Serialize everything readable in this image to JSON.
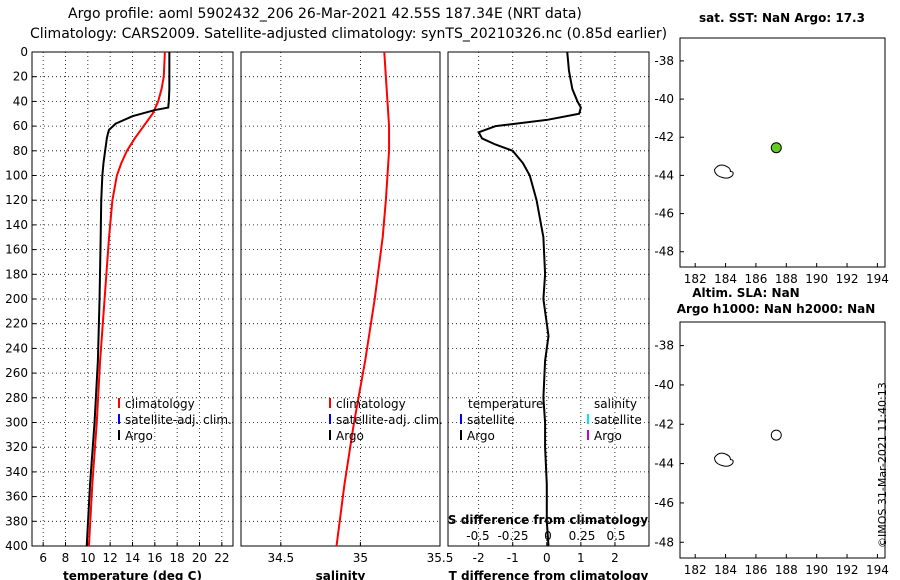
{
  "title": {
    "line1": "Argo profile: aoml 5902432_206 26-Mar-2021 42.55S 187.34E (NRT data)",
    "line2": "Climatology: CARS2009. Satellite-adjusted climatology: synTS_20210326.nc (0.85d earlier)"
  },
  "timestamp": "©IMOS 31-Mar-2021 11:40:13",
  "colors": {
    "climatology": "#ff0000",
    "satellite": "#0000ff",
    "argo": "#000000",
    "satellite_s": "#00e5ff",
    "argo_s": "#cc00cc",
    "float_marker": "#66cc22"
  },
  "chart_data": [
    {
      "type": "line",
      "name": "temperature",
      "xlabel": "temperature (deg C)",
      "ylabel": "",
      "xlim": [
        5,
        23
      ],
      "ylim": [
        400,
        0
      ],
      "xticks": [
        6,
        8,
        10,
        12,
        14,
        16,
        18,
        20,
        22
      ],
      "yticks": [
        0,
        20,
        40,
        60,
        80,
        100,
        120,
        140,
        160,
        180,
        200,
        220,
        240,
        260,
        280,
        300,
        320,
        340,
        360,
        380,
        400
      ],
      "grid": true,
      "legend": [
        "climatology",
        "satellite-adj. clim.",
        "Argo"
      ],
      "series": [
        {
          "name": "climatology",
          "color": "#ff0000",
          "depth": [
            0,
            20,
            30,
            40,
            50,
            60,
            70,
            80,
            90,
            100,
            120,
            150,
            200,
            250,
            300,
            350,
            400
          ],
          "values": [
            16.9,
            16.8,
            16.6,
            16.3,
            15.8,
            15.0,
            14.2,
            13.5,
            13.0,
            12.6,
            12.2,
            11.9,
            11.5,
            11.1,
            10.8,
            10.4,
            10.1
          ]
        },
        {
          "name": "Argo",
          "color": "#000000",
          "depth": [
            0,
            10,
            20,
            30,
            40,
            45,
            47,
            52,
            58,
            63,
            66,
            70,
            80,
            90,
            100,
            120,
            150,
            200,
            250,
            300,
            350,
            400
          ],
          "values": [
            17.3,
            17.3,
            17.3,
            17.3,
            17.25,
            17.2,
            16.0,
            14.0,
            12.5,
            11.9,
            11.8,
            11.7,
            11.55,
            11.4,
            11.3,
            11.2,
            11.15,
            11.05,
            10.9,
            10.6,
            10.2,
            9.9
          ]
        }
      ]
    },
    {
      "type": "line",
      "name": "salinity",
      "xlabel": "salinity",
      "xlim": [
        34.25,
        35.5
      ],
      "ylim": [
        400,
        0
      ],
      "xticks": [
        34.5,
        35,
        35.5
      ],
      "xticklabels": [
        "34.5",
        "35",
        "35.5"
      ],
      "grid": true,
      "legend": [
        "climatology",
        "satellite-adj. clim.",
        "Argo"
      ],
      "series": [
        {
          "name": "climatology",
          "color": "#ff0000",
          "depth": [
            0,
            20,
            40,
            60,
            80,
            100,
            120,
            150,
            200,
            250,
            300,
            350,
            400
          ],
          "values": [
            35.15,
            35.16,
            35.17,
            35.18,
            35.18,
            35.17,
            35.16,
            35.14,
            35.09,
            35.03,
            34.96,
            34.9,
            34.85
          ]
        }
      ]
    },
    {
      "type": "line",
      "name": "difference",
      "xlabel": "T difference from climatology",
      "xlabel_top": "S difference from climatology",
      "xlim": [
        -2.9,
        3.0
      ],
      "ylim": [
        400,
        0
      ],
      "xticks": [
        -2,
        -1,
        0,
        1,
        2
      ],
      "xticklabels": [
        "-2",
        "-1",
        "0",
        "1",
        "2"
      ],
      "s_ticklabels": [
        "-0.5",
        "-0.25",
        "0",
        "0.25",
        "0.5"
      ],
      "grid": true,
      "legend_t": {
        "header": "temperature",
        "items": [
          "satellite",
          "Argo"
        ]
      },
      "legend_s": {
        "header": "salinity",
        "items": [
          "satellite",
          "Argo"
        ]
      },
      "series": [
        {
          "name": "Argo T difference",
          "color": "#000000",
          "depth": [
            0,
            15,
            30,
            40,
            45,
            50,
            55,
            60,
            65,
            70,
            75,
            80,
            90,
            100,
            120,
            150,
            180,
            200,
            230,
            250,
            280,
            300,
            320,
            350,
            380,
            400
          ],
          "values": [
            0.6,
            0.65,
            0.75,
            0.9,
            1.0,
            0.95,
            0.0,
            -1.5,
            -2.0,
            -1.9,
            -1.5,
            -1.0,
            -0.7,
            -0.5,
            -0.3,
            -0.1,
            -0.05,
            -0.1,
            0.05,
            -0.05,
            -0.1,
            -0.05,
            -0.05,
            0.0,
            0.0,
            0.05
          ]
        }
      ]
    },
    {
      "type": "scatter",
      "name": "map-sst",
      "title": "sat. SST: NaN Argo: 17.3",
      "xlim": [
        181,
        194.5
      ],
      "ylim": [
        -48.8,
        -36.8
      ],
      "xticks": [
        182,
        184,
        186,
        188,
        190,
        192,
        194
      ],
      "yticks": [
        -38,
        -40,
        -42,
        -44,
        -46,
        -48
      ],
      "points": [
        {
          "x": 187.34,
          "y": -42.55,
          "fill": "#66cc22"
        }
      ]
    },
    {
      "type": "scatter",
      "name": "map-altim",
      "title": "Altim. SLA: NaN",
      "subtitle": "Argo h1000: NaN h2000: NaN",
      "xlim": [
        181,
        194.5
      ],
      "ylim": [
        -48.8,
        -36.8
      ],
      "xticks": [
        182,
        184,
        186,
        188,
        190,
        192,
        194
      ],
      "yticks": [
        -38,
        -40,
        -42,
        -44,
        -46,
        -48
      ],
      "points": [
        {
          "x": 187.34,
          "y": -42.55,
          "fill": "#ffffff"
        }
      ]
    }
  ]
}
